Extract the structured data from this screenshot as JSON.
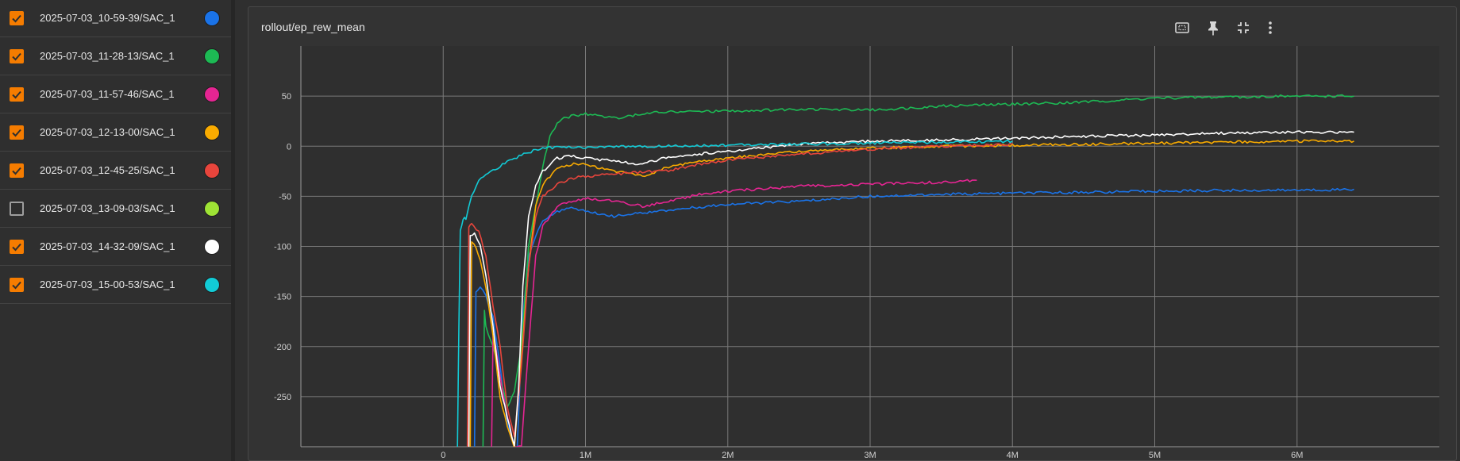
{
  "sidebar": {
    "runs": [
      {
        "name": "2025-07-03_10-59-39/SAC_1",
        "checked": true,
        "color": "#1a73e8"
      },
      {
        "name": "2025-07-03_11-28-13/SAC_1",
        "checked": true,
        "color": "#1db954"
      },
      {
        "name": "2025-07-03_11-57-46/SAC_1",
        "checked": true,
        "color": "#e52592"
      },
      {
        "name": "2025-07-03_12-13-00/SAC_1",
        "checked": true,
        "color": "#f9ab00"
      },
      {
        "name": "2025-07-03_12-45-25/SAC_1",
        "checked": true,
        "color": "#e8453c"
      },
      {
        "name": "2025-07-03_13-09-03/SAC_1",
        "checked": false,
        "color": "#9ee335"
      },
      {
        "name": "2025-07-03_14-32-09/SAC_1",
        "checked": true,
        "color": "#ffffff"
      },
      {
        "name": "2025-07-03_15-00-53/SAC_1",
        "checked": true,
        "color": "#12cbd6"
      }
    ]
  },
  "card": {
    "title": "rollout/ep_rew_mean",
    "toolbar": {
      "fit_domain_icon": "fit-to-data-icon",
      "pin_icon": "pin-icon",
      "collapse_icon": "collapse-icon",
      "more_icon": "more-vert-icon"
    }
  },
  "chart_data": {
    "type": "line",
    "title": "rollout/ep_rew_mean",
    "xlabel": "",
    "ylabel": "",
    "xlim": [
      -1000000,
      7000000
    ],
    "ylim": [
      -300,
      100
    ],
    "x_ticks": [
      {
        "v": 0,
        "label": "0"
      },
      {
        "v": 1000000,
        "label": "1M"
      },
      {
        "v": 2000000,
        "label": "2M"
      },
      {
        "v": 3000000,
        "label": "3M"
      },
      {
        "v": 4000000,
        "label": "4M"
      },
      {
        "v": 5000000,
        "label": "5M"
      },
      {
        "v": 6000000,
        "label": "6M"
      }
    ],
    "y_ticks": [
      {
        "v": 50,
        "label": "50"
      },
      {
        "v": 0,
        "label": "0"
      },
      {
        "v": -50,
        "label": "-50"
      },
      {
        "v": -100,
        "label": "-100"
      },
      {
        "v": -150,
        "label": "-150"
      },
      {
        "v": -200,
        "label": "-200"
      },
      {
        "v": -250,
        "label": "-250"
      }
    ],
    "grid": true,
    "series": [
      {
        "color": "#1a73e8",
        "x": [
          220000,
          230000,
          260000,
          300000,
          350000,
          400000,
          450000,
          500000,
          520000,
          560000,
          600000,
          650000,
          700000,
          800000,
          900000,
          1000000,
          1200000,
          1500000,
          2000000,
          2500000,
          3000000,
          3500000,
          4000000,
          4500000,
          5000000,
          5500000,
          6000000,
          6400000
        ],
        "y": [
          -300,
          -145,
          -140,
          -150,
          -170,
          -220,
          -275,
          -300,
          -300,
          -170,
          -110,
          -90,
          -75,
          -65,
          -62,
          -65,
          -70,
          -65,
          -58,
          -55,
          -50,
          -48,
          -47,
          -46,
          -45,
          -44,
          -44,
          -43
        ]
      },
      {
        "color": "#1db954",
        "x": [
          280000,
          290000,
          300000,
          350000,
          400000,
          450000,
          500000,
          550000,
          600000,
          650000,
          700000,
          750000,
          800000,
          850000,
          900000,
          1000000,
          1200000,
          1500000,
          2000000,
          2500000,
          3000000,
          3500000,
          4000000,
          4500000,
          5000000,
          5500000,
          6000000,
          6400000
        ],
        "y": [
          -300,
          -165,
          -180,
          -200,
          -230,
          -260,
          -245,
          -200,
          -100,
          -60,
          -20,
          10,
          22,
          28,
          30,
          32,
          28,
          34,
          35,
          37,
          36,
          40,
          42,
          44,
          48,
          49,
          50,
          50
        ]
      },
      {
        "color": "#e52592",
        "x": [
          340000,
          350000,
          370000,
          400000,
          450000,
          500000,
          550000,
          600000,
          650000,
          700000,
          800000,
          900000,
          1000000,
          1200000,
          1400000,
          1600000,
          1800000,
          2000000,
          2500000,
          3000000,
          3500000,
          3750000
        ],
        "y": [
          -300,
          -190,
          -200,
          -230,
          -270,
          -300,
          -300,
          -200,
          -110,
          -80,
          -60,
          -55,
          -52,
          -55,
          -60,
          -55,
          -48,
          -45,
          -40,
          -38,
          -36,
          -34
        ]
      },
      {
        "color": "#f9ab00",
        "x": [
          190000,
          200000,
          230000,
          260000,
          300000,
          350000,
          400000,
          450000,
          500000,
          550000,
          600000,
          650000,
          700000,
          800000,
          900000,
          1000000,
          1200000,
          1400000,
          1600000,
          1800000,
          2000000,
          2500000,
          3000000,
          3500000,
          4000000,
          4500000,
          5000000,
          5500000,
          6000000,
          6400000
        ],
        "y": [
          -300,
          -95,
          -100,
          -115,
          -140,
          -190,
          -250,
          -280,
          -300,
          -210,
          -120,
          -60,
          -38,
          -22,
          -18,
          -18,
          -25,
          -30,
          -20,
          -15,
          -12,
          -5,
          -2,
          0,
          1,
          2,
          3,
          4,
          5,
          5
        ]
      },
      {
        "color": "#e8453c",
        "x": [
          170000,
          180000,
          200000,
          250000,
          300000,
          350000,
          400000,
          450000,
          500000,
          550000,
          600000,
          650000,
          700000,
          800000,
          900000,
          1000000,
          1200000,
          1400000,
          1600000,
          1800000,
          2000000,
          2500000,
          3000000,
          3500000,
          4000000
        ],
        "y": [
          -300,
          -80,
          -78,
          -85,
          -110,
          -160,
          -200,
          -260,
          -290,
          -220,
          -120,
          -70,
          -50,
          -38,
          -32,
          -30,
          -28,
          -26,
          -24,
          -18,
          -14,
          -8,
          -3,
          0,
          2
        ]
      },
      {
        "color": "#ffffff",
        "x": [
          180000,
          190000,
          220000,
          260000,
          300000,
          350000,
          400000,
          450000,
          500000,
          530000,
          560000,
          600000,
          650000,
          700000,
          800000,
          900000,
          1000000,
          1200000,
          1400000,
          1600000,
          1800000,
          2000000,
          2500000,
          3000000,
          3500000,
          4000000,
          4500000,
          5000000,
          5500000,
          6000000,
          6400000
        ],
        "y": [
          -300,
          -90,
          -87,
          -100,
          -130,
          -180,
          -240,
          -270,
          -300,
          -240,
          -140,
          -70,
          -40,
          -25,
          -12,
          -10,
          -12,
          -15,
          -18,
          -10,
          -8,
          -5,
          2,
          5,
          6,
          8,
          10,
          11,
          13,
          14,
          14
        ]
      },
      {
        "color": "#12cbd6",
        "x": [
          100000,
          110000,
          120000,
          140000,
          160000,
          200000,
          250000,
          300000,
          400000,
          500000,
          600000,
          700000,
          800000,
          1000000,
          1500000,
          2000000,
          2500000,
          3000000,
          3500000,
          4000000
        ],
        "y": [
          -300,
          -180,
          -85,
          -72,
          -72,
          -50,
          -35,
          -28,
          -20,
          -12,
          -6,
          -2,
          -1,
          -1,
          0,
          1,
          2,
          3,
          4,
          5
        ]
      }
    ]
  }
}
